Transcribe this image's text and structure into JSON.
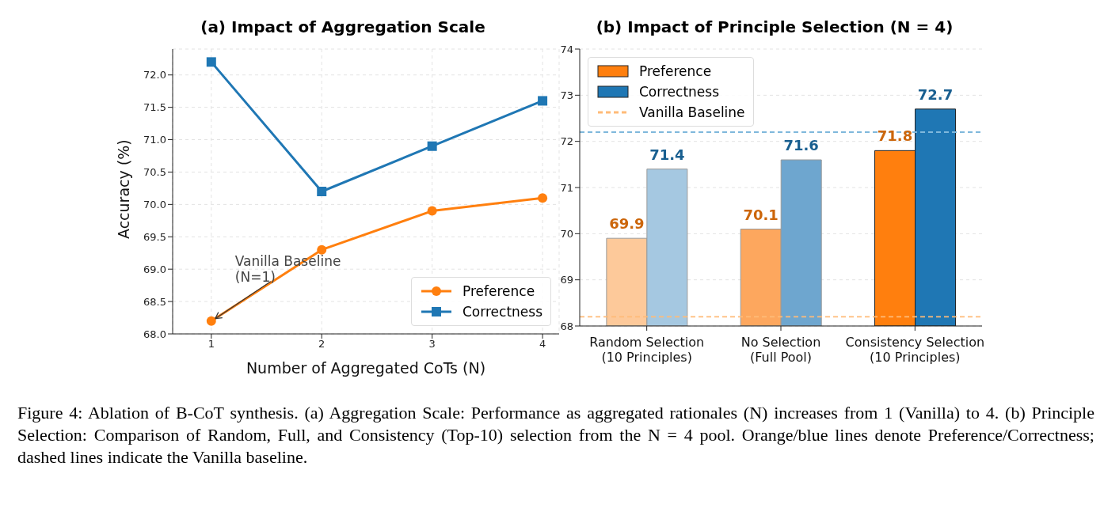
{
  "chart_data": [
    {
      "type": "line",
      "title": "(a) Impact of Aggregation Scale",
      "xlabel": "Number of Aggregated CoTs (N)",
      "ylabel": "Accuracy (%)",
      "x": [
        1,
        2,
        3,
        4
      ],
      "series": [
        {
          "name": "Preference",
          "color": "#ff7f0e",
          "marker": "circle",
          "values": [
            68.2,
            69.3,
            69.9,
            70.1
          ]
        },
        {
          "name": "Correctness",
          "color": "#1f77b4",
          "marker": "square",
          "values": [
            72.2,
            70.2,
            70.9,
            71.6
          ]
        }
      ],
      "xlim": [
        0.65,
        4.15
      ],
      "xticks": [
        1,
        2,
        3,
        4
      ],
      "ylim": [
        68,
        72.4
      ],
      "yticks": [
        {
          "value": 68,
          "label": "68.0"
        },
        68.5,
        {
          "value": 69,
          "label": "69.0"
        },
        69.5,
        {
          "value": 70,
          "label": "70.0"
        },
        70.5,
        {
          "value": 71,
          "label": "71.0"
        },
        71.5,
        {
          "value": 72,
          "label": "72.0"
        }
      ],
      "annotations": [
        {
          "text": "Vanilla Baseline\n(N=1)",
          "x": 1,
          "y": 68.2
        },
        "Figure 4:   Ablation of B-CoT synthesis. (a) Aggregation Scale: Performance as aggregated rationales (N) increases from 1 (Vanilla) to 4. (b) Principle Selection: Comparison of Random, Full, and Consistency (Top-10) selection from the N = 4 pool. Orange/blue lines denote Preference/Correctness; dashed lines indicate the Vanilla baseline."
      ],
      "grid": true,
      "legend": "bottom right",
      "line_style": "solid"
    },
    {
      "type": "bar",
      "title": "(b) Impact of Principle Selection (N = 4)",
      "categories": [
        "Random Selection\n(10 Principles)",
        "No Selection\n(Full Pool)",
        "Consistency Selection\n(10 Principles)"
      ],
      "series": [
        {
          "name": "Preference",
          "color": "#ff7f0e",
          "colors": [
            "#fdc99a",
            "#fda75e",
            "#ff7f0e"
          ],
          "values": [
            69.9,
            70.1,
            71.8
          ]
        },
        {
          "name": "Correctness",
          "color": "#1f77b4",
          "colors": [
            "#a5c8e1",
            "#6ea6cf",
            "#1f77b4"
          ],
          "values": [
            71.4,
            71.6,
            72.7
          ]
        }
      ],
      "ylim": [
        68,
        74
      ],
      "yticks": [
        68,
        69,
        70,
        71,
        72,
        73,
        74
      ],
      "ref_lines": [
        {
          "axis": "y",
          "value": 68.2,
          "label": "Vanilla Baseline",
          "color": "#ffbb78",
          "line_style": "dashed"
        },
        {
          "axis": "y",
          "value": 72.2,
          "label": null,
          "color": "#7fb8dc",
          "line_style": "dashed"
        }
      ],
      "data_labels": true,
      "grid": "y",
      "legend": "top left"
    }
  ]
}
